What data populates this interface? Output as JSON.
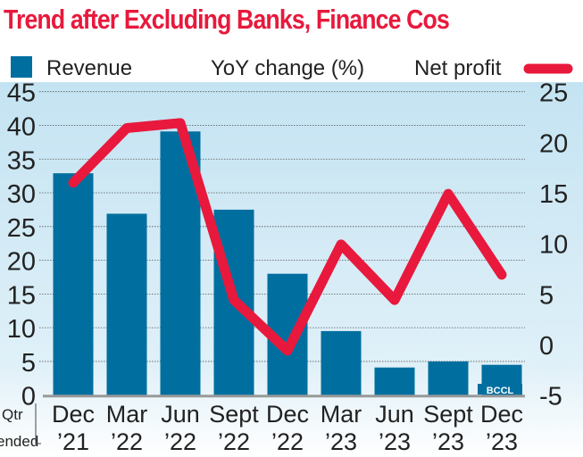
{
  "chart_data": {
    "type": "bar",
    "title": "Trend after Excluding Banks, Finance Cos",
    "subtitle": "YoY change (%)",
    "xlabel": "Qtr ended",
    "xlabel_lines": [
      "Qtr",
      "ended"
    ],
    "categories": [
      [
        "Dec",
        "’21"
      ],
      [
        "Mar",
        "’22"
      ],
      [
        "Jun",
        "’22"
      ],
      [
        "Sept",
        "’22"
      ],
      [
        "Dec",
        "’22"
      ],
      [
        "Mar",
        "’23"
      ],
      [
        "Jun",
        "’23"
      ],
      [
        "Sept",
        "’23"
      ],
      [
        "Dec",
        "’23"
      ]
    ],
    "series": [
      {
        "name": "Revenue",
        "type": "bar",
        "axis": "left",
        "color": "#006fa0",
        "values": [
          32.9,
          26.9,
          39.1,
          27.5,
          18.0,
          9.5,
          4.1,
          5.0,
          4.5
        ]
      },
      {
        "name": "Net profit",
        "type": "line",
        "axis": "right",
        "color": "#e8193c",
        "values": [
          16.0,
          21.4,
          21.9,
          4.4,
          -0.6,
          9.9,
          4.4,
          14.9,
          6.9
        ]
      }
    ],
    "ylim_left": [
      0,
      45
    ],
    "yticks_left": [
      0,
      5,
      10,
      15,
      20,
      25,
      30,
      35,
      40,
      45
    ],
    "ylim_right": [
      -5,
      25
    ],
    "yticks_right": [
      -5,
      0,
      5,
      10,
      15,
      20,
      25
    ],
    "grid": true,
    "legend_placement": "top",
    "background": "#cde8f3",
    "credit": "BCCL"
  }
}
